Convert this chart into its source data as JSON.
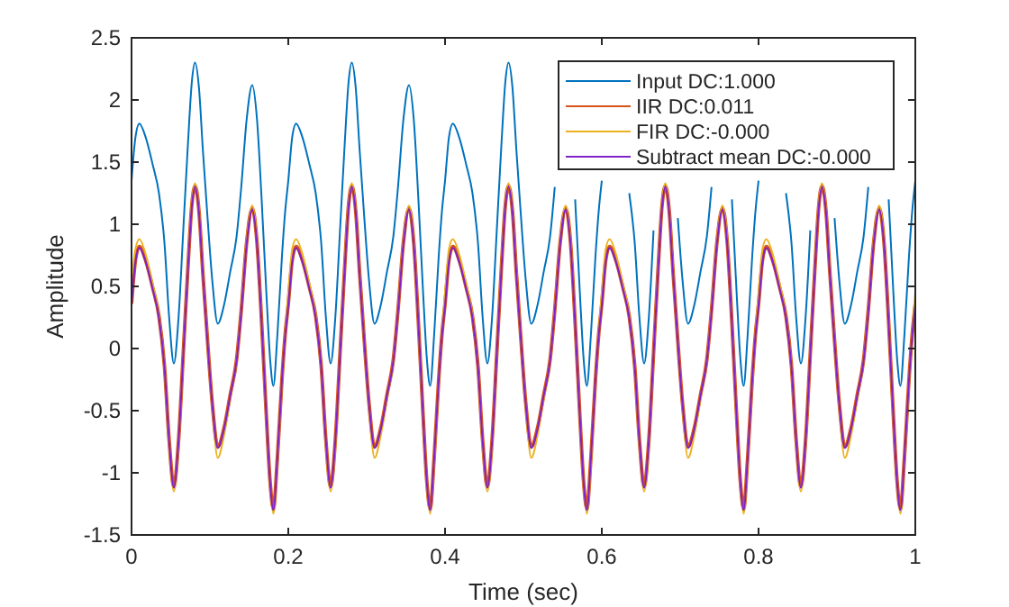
{
  "chart_data": {
    "type": "line",
    "xlabel": "Time (sec)",
    "ylabel": "Amplitude",
    "x": [
      0,
      0.005,
      0.01,
      0.018,
      0.027,
      0.035,
      0.042,
      0.048,
      0.054,
      0.06,
      0.066,
      0.072,
      0.077,
      0.081,
      0.086,
      0.091,
      0.097,
      0.103,
      0.11,
      0.118,
      0.126,
      0.134,
      0.14,
      0.147,
      0.154,
      0.16,
      0.166,
      0.172,
      0.177,
      0.181,
      0.186,
      0.192,
      0.196,
      0.2,
      0.205,
      0.21,
      0.218,
      0.227,
      0.235,
      0.242,
      0.248,
      0.254,
      0.26,
      0.266,
      0.272,
      0.277,
      0.281,
      0.286,
      0.291,
      0.297,
      0.303,
      0.31,
      0.318,
      0.326,
      0.334,
      0.34,
      0.347,
      0.354,
      0.36,
      0.366,
      0.372,
      0.377,
      0.381,
      0.386,
      0.392,
      0.396,
      0.4,
      0.405,
      0.41,
      0.418,
      0.427,
      0.435,
      0.442,
      0.448,
      0.454,
      0.46,
      0.466,
      0.472,
      0.477,
      0.481,
      0.486,
      0.491,
      0.497,
      0.503,
      0.51,
      0.518,
      0.526,
      0.534,
      0.54,
      0.547,
      0.554,
      0.56,
      0.566,
      0.572,
      0.577,
      0.581,
      0.586,
      0.592,
      0.596,
      0.6,
      0.605,
      0.61,
      0.618,
      0.627,
      0.635,
      0.642,
      0.648,
      0.654,
      0.66,
      0.666,
      0.672,
      0.677,
      0.681,
      0.686,
      0.691,
      0.697,
      0.703,
      0.71,
      0.718,
      0.726,
      0.734,
      0.74,
      0.747,
      0.754,
      0.76,
      0.766,
      0.772,
      0.777,
      0.781,
      0.786,
      0.792,
      0.796,
      0.8,
      0.805,
      0.81,
      0.818,
      0.827,
      0.835,
      0.842,
      0.848,
      0.854,
      0.86,
      0.866,
      0.872,
      0.877,
      0.881,
      0.886,
      0.891,
      0.897,
      0.903,
      0.91,
      0.918,
      0.926,
      0.934,
      0.94,
      0.947,
      0.954,
      0.96,
      0.966,
      0.972,
      0.977,
      0.981,
      0.986,
      0.992,
      0.996,
      1
    ],
    "series": [
      {
        "name": "Input DC:1.000",
        "color": "#0072bd",
        "values": [
          1.35,
          1.7,
          1.81,
          1.7,
          1.48,
          1.25,
          0.85,
          0.25,
          -0.12,
          0.25,
          0.95,
          1.65,
          2.15,
          2.3,
          2.1,
          1.6,
          1.05,
          0.55,
          0.2,
          0.35,
          0.62,
          0.9,
          1.3,
          1.85,
          2.12,
          1.85,
          1.2,
          0.45,
          -0.1,
          -0.3,
          0.1,
          0.75,
          1.1,
          1.35,
          1.7,
          1.81,
          1.7,
          1.48,
          1.25,
          0.85,
          0.25,
          -0.12,
          0.25,
          0.95,
          1.65,
          2.15,
          2.3,
          2.1,
          1.6,
          1.05,
          0.55,
          0.2,
          0.35,
          0.62,
          0.9,
          1.3,
          1.85,
          2.12,
          1.85,
          1.2,
          0.45,
          -0.1,
          -0.3,
          0.1,
          0.75,
          1.1,
          1.35,
          1.7,
          1.81,
          1.7,
          1.48,
          1.25,
          0.85,
          0.25,
          -0.12,
          0.25,
          0.95,
          1.65,
          2.15,
          2.3,
          2.1,
          1.6,
          1.05,
          0.55,
          0.2,
          0.35,
          0.62,
          0.9,
          1.3,
          null,
          null,
          null,
          1.2,
          0.45,
          -0.1,
          -0.3,
          0.1,
          0.75,
          1.1,
          1.35,
          null,
          null,
          null,
          null,
          1.25,
          0.85,
          0.25,
          -0.12,
          0.25,
          0.95,
          null,
          null,
          null,
          null,
          null,
          1.05,
          0.55,
          0.2,
          0.35,
          0.62,
          0.9,
          1.3,
          null,
          null,
          null,
          1.2,
          0.45,
          -0.1,
          -0.3,
          0.1,
          0.75,
          1.1,
          1.35,
          null,
          null,
          null,
          null,
          1.25,
          0.85,
          0.25,
          -0.12,
          0.25,
          0.95,
          null,
          null,
          null,
          null,
          null,
          1.05,
          0.55,
          0.2,
          0.35,
          0.62,
          0.9,
          1.3,
          null,
          null,
          null,
          1.2,
          0.45,
          -0.1,
          -0.3,
          0.1,
          0.75,
          1.1,
          1.35
        ]
      },
      {
        "name": "IIR DC:0.011",
        "color": "#d95319",
        "values": [
          0.36,
          0.71,
          0.82,
          0.71,
          0.49,
          0.26,
          -0.14,
          -0.74,
          -1.11,
          -0.74,
          -0.04,
          0.66,
          1.16,
          1.31,
          1.11,
          0.61,
          0.06,
          -0.44,
          -0.79,
          -0.64,
          -0.37,
          -0.09,
          0.31,
          0.86,
          1.13,
          0.86,
          0.21,
          -0.54,
          -1.09,
          -1.29,
          -0.89,
          -0.24,
          0.11,
          0.36,
          0.71,
          0.82,
          0.71,
          0.49,
          0.26,
          -0.14,
          -0.74,
          -1.11,
          -0.74,
          -0.04,
          0.66,
          1.16,
          1.31,
          1.11,
          0.61,
          0.06,
          -0.44,
          -0.79,
          -0.64,
          -0.37,
          -0.09,
          0.31,
          0.86,
          1.13,
          0.86,
          0.21,
          -0.54,
          -1.09,
          -1.29,
          -0.89,
          -0.24,
          0.11,
          0.36,
          0.71,
          0.82,
          0.71,
          0.49,
          0.26,
          -0.14,
          -0.74,
          -1.11,
          -0.74,
          -0.04,
          0.66,
          1.16,
          1.31,
          1.11,
          0.61,
          0.06,
          -0.44,
          -0.79,
          -0.64,
          -0.37,
          -0.09,
          0.31,
          0.86,
          1.13,
          0.86,
          0.21,
          -0.54,
          -1.09,
          -1.29,
          -0.89,
          -0.24,
          0.11,
          0.36,
          0.71,
          0.82,
          0.71,
          0.49,
          0.26,
          -0.14,
          -0.74,
          -1.11,
          -0.74,
          -0.04,
          0.66,
          1.16,
          1.31,
          1.11,
          0.61,
          0.06,
          -0.44,
          -0.79,
          -0.64,
          -0.37,
          -0.09,
          0.31,
          0.86,
          1.13,
          0.86,
          0.21,
          -0.54,
          -1.09,
          -1.29,
          -0.89,
          -0.24,
          0.11,
          0.36,
          0.71,
          0.82,
          0.71,
          0.49,
          0.26,
          -0.14,
          -0.74,
          -1.11,
          -0.74,
          -0.04,
          0.66,
          1.16,
          1.31,
          1.11,
          0.61,
          0.06,
          -0.44,
          -0.79,
          -0.64,
          -0.37,
          -0.09,
          0.31,
          0.86,
          1.13,
          0.86,
          0.21,
          -0.54,
          -1.09,
          -1.29,
          -0.89,
          -0.24,
          0.11,
          0.36
        ]
      },
      {
        "name": "FIR DC:-0.000",
        "color": "#edb120",
        "values": [
          0.55,
          0.8,
          0.88,
          0.76,
          0.52,
          0.27,
          -0.15,
          -0.78,
          -1.15,
          -0.78,
          -0.05,
          0.68,
          1.18,
          1.33,
          1.12,
          0.62,
          0.05,
          -0.47,
          -0.88,
          -0.7,
          -0.4,
          -0.1,
          0.32,
          0.88,
          1.15,
          0.88,
          0.2,
          -0.57,
          -1.13,
          -1.33,
          -0.93,
          -0.27,
          0.12,
          0.45,
          0.8,
          0.88,
          0.76,
          0.52,
          0.27,
          -0.15,
          -0.78,
          -1.15,
          -0.78,
          -0.05,
          0.68,
          1.18,
          1.33,
          1.12,
          0.62,
          0.05,
          -0.47,
          -0.88,
          -0.7,
          -0.4,
          -0.1,
          0.32,
          0.88,
          1.15,
          0.88,
          0.2,
          -0.57,
          -1.13,
          -1.33,
          -0.93,
          -0.27,
          0.12,
          0.45,
          0.8,
          0.88,
          0.76,
          0.52,
          0.27,
          -0.15,
          -0.78,
          -1.15,
          -0.78,
          -0.05,
          0.68,
          1.18,
          1.33,
          1.12,
          0.62,
          0.05,
          -0.47,
          -0.88,
          -0.7,
          -0.4,
          -0.1,
          0.32,
          0.88,
          1.15,
          0.88,
          0.2,
          -0.57,
          -1.13,
          -1.33,
          -0.93,
          -0.27,
          0.12,
          0.45,
          0.8,
          0.88,
          0.76,
          0.52,
          0.27,
          -0.15,
          -0.78,
          -1.15,
          -0.78,
          -0.05,
          0.68,
          1.18,
          1.33,
          1.12,
          0.62,
          0.05,
          -0.47,
          -0.88,
          -0.7,
          -0.4,
          -0.1,
          0.32,
          0.88,
          1.15,
          0.88,
          0.2,
          -0.57,
          -1.13,
          -1.33,
          -0.93,
          -0.27,
          0.12,
          0.45,
          0.8,
          0.88,
          0.76,
          0.52,
          0.27,
          -0.15,
          -0.78,
          -1.15,
          -0.78,
          -0.05,
          0.68,
          1.18,
          1.33,
          1.12,
          0.62,
          0.05,
          -0.47,
          -0.88,
          -0.7,
          -0.4,
          -0.1,
          0.32,
          0.88,
          1.15,
          0.88,
          0.2,
          -0.57,
          -1.13,
          -1.33,
          -0.93,
          -0.27,
          0.12,
          0.45
        ]
      },
      {
        "name": "Subtract mean DC:-0.000",
        "color": "#7f22c8",
        "values": [
          0.35,
          0.7,
          0.81,
          0.7,
          0.48,
          0.25,
          -0.15,
          -0.75,
          -1.12,
          -0.75,
          -0.05,
          0.65,
          1.15,
          1.3,
          1.1,
          0.6,
          0.05,
          -0.45,
          -0.8,
          -0.65,
          -0.38,
          -0.1,
          0.3,
          0.85,
          1.12,
          0.85,
          0.2,
          -0.55,
          -1.1,
          -1.3,
          -0.9,
          -0.25,
          0.1,
          0.35,
          0.7,
          0.81,
          0.7,
          0.48,
          0.25,
          -0.15,
          -0.75,
          -1.12,
          -0.75,
          -0.05,
          0.65,
          1.15,
          1.3,
          1.1,
          0.6,
          0.05,
          -0.45,
          -0.8,
          -0.65,
          -0.38,
          -0.1,
          0.3,
          0.85,
          1.12,
          0.85,
          0.2,
          -0.55,
          -1.1,
          -1.3,
          -0.9,
          -0.25,
          0.1,
          0.35,
          0.7,
          0.81,
          0.7,
          0.48,
          0.25,
          -0.15,
          -0.75,
          -1.12,
          -0.75,
          -0.05,
          0.65,
          1.15,
          1.3,
          1.1,
          0.6,
          0.05,
          -0.45,
          -0.8,
          -0.65,
          -0.38,
          -0.1,
          0.3,
          0.85,
          1.12,
          0.85,
          0.2,
          -0.55,
          -1.1,
          -1.3,
          -0.9,
          -0.25,
          0.1,
          0.35,
          0.7,
          0.81,
          0.7,
          0.48,
          0.25,
          -0.15,
          -0.75,
          -1.12,
          -0.75,
          -0.05,
          0.65,
          1.15,
          1.3,
          1.1,
          0.6,
          0.05,
          -0.45,
          -0.8,
          -0.65,
          -0.38,
          -0.1,
          0.3,
          0.85,
          1.12,
          0.85,
          0.2,
          -0.55,
          -1.1,
          -1.3,
          -0.9,
          -0.25,
          0.1,
          0.35,
          0.7,
          0.81,
          0.7,
          0.48,
          0.25,
          -0.15,
          -0.75,
          -1.12,
          -0.75,
          -0.05,
          0.65,
          1.15,
          1.3,
          1.1,
          0.6,
          0.05,
          -0.45,
          -0.8,
          -0.65,
          -0.38,
          -0.1,
          0.3,
          0.85,
          1.12,
          0.85,
          0.2,
          -0.55,
          -1.1,
          -1.3,
          -0.9,
          -0.25,
          0.1,
          0.35
        ]
      }
    ],
    "xlim": [
      0,
      1
    ],
    "xticks": [
      0,
      0.2,
      0.4,
      0.6,
      0.8,
      1
    ],
    "ylim": [
      -1.5,
      2.5
    ],
    "yticks": [
      -1.5,
      -1,
      -0.5,
      0,
      0.5,
      1,
      1.5,
      2,
      2.5
    ],
    "legend": "top right"
  }
}
